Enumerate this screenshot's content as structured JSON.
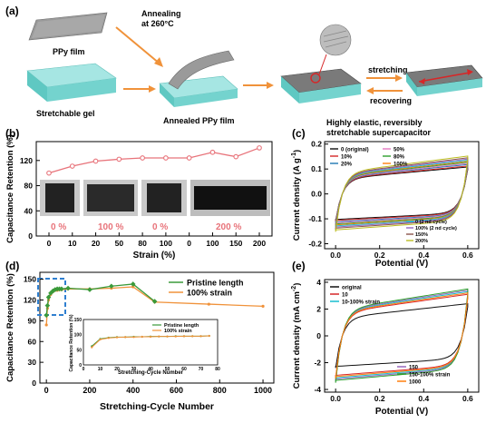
{
  "panel_a": {
    "label": "(a)",
    "ppy_film": "PPy film",
    "annealing_line1": "Annealing",
    "annealing_line2": "at 260°C",
    "stretchable_gel": "Stretchable gel",
    "annealed_film": "Annealed PPy film",
    "stretching": "stretching",
    "recovering": "recovering",
    "caption_line1": "Highly elastic, reversibly",
    "caption_line2": "stretchable supercapacitor",
    "colors": {
      "arrow": "#f0923a",
      "gel": "#7fd6d2",
      "film": "#8a8a8a"
    }
  },
  "panel_b": {
    "label": "(b)",
    "photo_labels": [
      "0 %",
      "100 %",
      "0 %",
      "200 %"
    ],
    "photo_label_color": "#e8737a",
    "chart_data": {
      "type": "line",
      "categories": [
        "0",
        "10",
        "20",
        "50",
        "80",
        "100",
        "0",
        "100",
        "150",
        "200"
      ],
      "values": [
        100,
        111,
        119,
        122,
        124,
        124,
        124,
        133,
        126,
        140
      ],
      "xlabel": "Strain (%)",
      "ylabel": "Capacitance Retention (%)",
      "ylim": [
        0,
        150
      ],
      "yticks": [
        "0",
        "40",
        "80",
        "120"
      ],
      "color": "#e8737a"
    }
  },
  "panel_c": {
    "label": "(c)",
    "chart_data": {
      "type": "line",
      "xlabel": "Potential (V)",
      "ylabel": "Current density (A g",
      "ylabel_sup": "-1",
      "ylabel_end": ")",
      "xlim": [
        -0.05,
        0.65
      ],
      "ylim": [
        -0.22,
        0.21
      ],
      "xticks": [
        "0.0",
        "0.2",
        "0.4",
        "0.6"
      ],
      "yticks": [
        "-0.2",
        "-0.1",
        "0.0",
        "0.1",
        "0.2"
      ],
      "legend_top": [
        "0 (original)",
        "50%",
        "10%",
        "80%",
        "20%",
        "100%"
      ],
      "legend_bottom": [
        "0 (2 nd cycle)",
        "100% (2 nd cycle)",
        "150%",
        "200%"
      ],
      "series": [
        {
          "name": "0 (original)",
          "amp": 0.108,
          "color": "#111111"
        },
        {
          "name": "10%",
          "amp": 0.112,
          "color": "#d62728"
        },
        {
          "name": "20%",
          "amp": 0.118,
          "color": "#1f77b4"
        },
        {
          "name": "50%",
          "amp": 0.122,
          "color": "#e377c2"
        },
        {
          "name": "80%",
          "amp": 0.127,
          "color": "#2ca02c"
        },
        {
          "name": "100%",
          "amp": 0.131,
          "color": "#ff7f0e"
        },
        {
          "name": "0 (2 nd cycle)",
          "amp": 0.135,
          "color": "#17becf"
        },
        {
          "name": "100% (2 nd cycle)",
          "amp": 0.14,
          "color": "#9467bd"
        },
        {
          "name": "150%",
          "amp": 0.145,
          "color": "#8c564b"
        },
        {
          "name": "200%",
          "amp": 0.152,
          "color": "#bcbd22"
        }
      ]
    }
  },
  "panel_d": {
    "label": "(d)",
    "chart_data": {
      "type": "line",
      "xlabel": "Stretching-Cycle Number",
      "ylabel": "Capacitance Retention (%)",
      "xlim": [
        -30,
        1050
      ],
      "ylim": [
        0,
        160
      ],
      "xticks": [
        "0",
        "200",
        "400",
        "600",
        "800",
        "1000"
      ],
      "yticks": [
        "0",
        "30",
        "60",
        "90",
        "120",
        "150"
      ],
      "series": [
        {
          "name": "Pristine length",
          "color": "#3a9a3a",
          "x": [
            0,
            5,
            10,
            20,
            30,
            40,
            50,
            60,
            70,
            100,
            200,
            300,
            400,
            500
          ],
          "y": [
            98,
            112,
            124,
            130,
            133,
            135,
            136,
            136,
            136,
            137,
            135,
            140,
            143,
            118
          ]
        },
        {
          "name": "100% strain",
          "color": "#f0923a",
          "x": [
            0,
            5,
            10,
            20,
            30,
            40,
            50,
            60,
            70,
            100,
            200,
            300,
            400,
            500,
            750,
            1000
          ],
          "y": [
            84,
            108,
            120,
            128,
            132,
            134,
            134,
            135,
            135,
            136,
            136,
            137,
            139,
            117,
            114,
            111
          ]
        }
      ],
      "inset": {
        "xlabel": "Stretching-Cycle Number",
        "ylabel": "Capacitance Retention (%)",
        "xlim": [
          0,
          80
        ],
        "ylim": [
          0,
          150
        ],
        "xticks": [
          "0",
          "10",
          "20",
          "30",
          "40",
          "50",
          "60",
          "70",
          "80"
        ],
        "yticks": [
          "0",
          "50",
          "100",
          "150"
        ],
        "series": [
          {
            "name": "Pristine length",
            "x": [
              5,
              10,
              15,
              20,
              25,
              30,
              35,
              40,
              45,
              50,
              55,
              60,
              65,
              70,
              75
            ],
            "y": [
              62,
              86,
              90,
              92,
              92,
              93,
              93,
              94,
              94,
              94,
              95,
              95,
              95,
              95,
              96
            ]
          },
          {
            "name": "100% strain",
            "x": [
              5,
              10,
              15,
              20,
              25,
              30,
              35,
              40,
              45,
              50,
              55,
              60,
              65,
              70,
              75
            ],
            "y": [
              58,
              84,
              89,
              91,
              92,
              92,
              93,
              93,
              94,
              94,
              94,
              95,
              95,
              95,
              96
            ]
          }
        ]
      }
    }
  },
  "panel_e": {
    "label": "(e)",
    "chart_data": {
      "type": "line",
      "xlabel": "Potential (V)",
      "ylabel": "Current density (mA cm",
      "ylabel_sup": "-2",
      "ylabel_end": ")",
      "xlim": [
        -0.05,
        0.65
      ],
      "ylim": [
        -4.2,
        4.2
      ],
      "xticks": [
        "0.0",
        "0.2",
        "0.4",
        "0.6"
      ],
      "yticks": [
        "-4",
        "-2",
        "0",
        "2",
        "4"
      ],
      "legend_top": [
        "original",
        "10",
        "10-100% strain"
      ],
      "legend_bottom": [
        "150",
        "150-100% strain",
        "1000"
      ],
      "series": [
        {
          "name": "original",
          "amp": 2.4,
          "color": "#111111"
        },
        {
          "name": "10",
          "amp": 3.1,
          "color": "#d62728"
        },
        {
          "name": "10-100% strain",
          "amp": 3.3,
          "color": "#17becf"
        },
        {
          "name": "150",
          "amp": 3.4,
          "color": "#9467bd"
        },
        {
          "name": "150-100% strain",
          "amp": 3.5,
          "color": "#2ca02c"
        },
        {
          "name": "1000",
          "amp": 3.2,
          "color": "#ff7f0e"
        }
      ]
    }
  }
}
